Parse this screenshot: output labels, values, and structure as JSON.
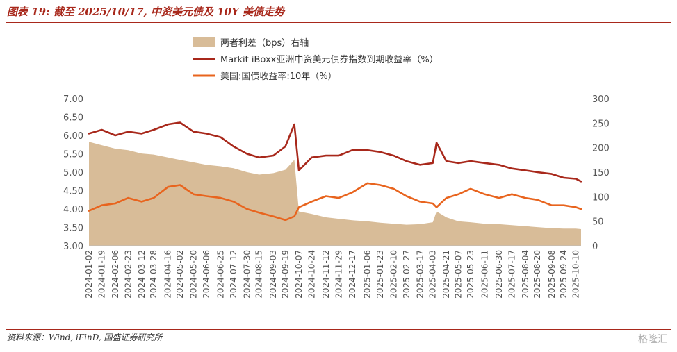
{
  "title": "图表 19: 截至 2025/10/17, 中资美元债及 10Y 美债走势",
  "source": "资料来源：Wind, iFinD, 国盛证券研究所",
  "watermark": "格隆汇",
  "colors": {
    "spread": "#d8bc98",
    "markit": "#a8281b",
    "treasury": "#e8641e",
    "accent": "#a8281b"
  },
  "chart_data": {
    "type": "line",
    "legend": [
      "两者利差（bps）右轴",
      "Markit iBoxx亚洲中资美元债券指数到期收益率（%）",
      "美国:国债收益率:10年（%）"
    ],
    "left_axis": {
      "ylim": [
        3.0,
        7.0
      ],
      "ticks": [
        "3.00",
        "3.50",
        "4.00",
        "4.50",
        "5.00",
        "5.50",
        "6.00",
        "6.50",
        "7.00"
      ]
    },
    "right_axis": {
      "ylim": [
        0,
        300
      ],
      "ticks": [
        "0",
        "50",
        "100",
        "150",
        "200",
        "250",
        "300"
      ]
    },
    "x_tick_labels": [
      "2024-01-02",
      "2024-01-19",
      "2024-02-06",
      "2024-02-23",
      "2024-03-12",
      "2024-03-28",
      "2024-04-16",
      "2024-05-02",
      "2024-05-20",
      "2024-06-06",
      "2024-06-25",
      "2024-07-12",
      "2024-07-30",
      "2024-08-15",
      "2024-09-03",
      "2024-09-19",
      "2024-10-07",
      "2024-10-24",
      "2024-11-12",
      "2024-11-29",
      "2024-12-17",
      "2025-01-06",
      "2025-01-23",
      "2025-02-10",
      "2025-02-27",
      "2025-03-17",
      "2025-04-03",
      "2025-04-21",
      "2025-05-07",
      "2025-05-23",
      "2025-06-11",
      "2025-06-30",
      "2025-07-17",
      "2025-08-04",
      "2025-08-20",
      "2025-09-08",
      "2025-09-24",
      "2025-10-10"
    ],
    "x": [
      "2024-01-02",
      "2024-01-19",
      "2024-02-06",
      "2024-02-23",
      "2024-03-12",
      "2024-03-28",
      "2024-04-16",
      "2024-05-02",
      "2024-05-20",
      "2024-06-06",
      "2024-06-25",
      "2024-07-12",
      "2024-07-30",
      "2024-08-15",
      "2024-09-03",
      "2024-09-19",
      "2024-10-01",
      "2024-10-07",
      "2024-10-24",
      "2024-11-12",
      "2024-11-29",
      "2024-12-17",
      "2025-01-06",
      "2025-01-23",
      "2025-02-10",
      "2025-02-27",
      "2025-03-17",
      "2025-04-03",
      "2025-04-08",
      "2025-04-21",
      "2025-05-07",
      "2025-05-23",
      "2025-06-11",
      "2025-06-30",
      "2025-07-17",
      "2025-08-04",
      "2025-08-20",
      "2025-09-08",
      "2025-09-24",
      "2025-10-10",
      "2025-10-17"
    ],
    "series": [
      {
        "name": "两者利差（bps）右轴",
        "axis": "right",
        "type": "area",
        "values": [
          212,
          205,
          198,
          195,
          188,
          186,
          180,
          175,
          170,
          165,
          162,
          158,
          150,
          145,
          148,
          155,
          175,
          70,
          65,
          58,
          55,
          52,
          50,
          47,
          45,
          43,
          44,
          48,
          70,
          58,
          50,
          48,
          45,
          44,
          42,
          40,
          38,
          36,
          35,
          35,
          34
        ]
      },
      {
        "name": "Markit iBoxx亚洲中资美元债券指数到期收益率（%）",
        "axis": "left",
        "type": "line",
        "values": [
          6.05,
          6.15,
          6.0,
          6.1,
          6.05,
          6.15,
          6.3,
          6.35,
          6.1,
          6.05,
          5.95,
          5.7,
          5.5,
          5.4,
          5.45,
          5.7,
          6.3,
          5.05,
          5.4,
          5.45,
          5.45,
          5.6,
          5.6,
          5.55,
          5.45,
          5.3,
          5.2,
          5.25,
          5.8,
          5.3,
          5.25,
          5.3,
          5.25,
          5.2,
          5.1,
          5.05,
          5.0,
          4.95,
          4.85,
          4.82,
          4.75
        ]
      },
      {
        "name": "美国:国债收益率:10年（%）",
        "axis": "left",
        "type": "line",
        "values": [
          3.95,
          4.1,
          4.15,
          4.3,
          4.2,
          4.3,
          4.6,
          4.65,
          4.4,
          4.35,
          4.3,
          4.2,
          4.0,
          3.9,
          3.8,
          3.7,
          3.8,
          4.05,
          4.2,
          4.35,
          4.3,
          4.45,
          4.7,
          4.65,
          4.55,
          4.35,
          4.2,
          4.15,
          4.05,
          4.3,
          4.4,
          4.55,
          4.4,
          4.3,
          4.4,
          4.3,
          4.25,
          4.1,
          4.1,
          4.05,
          4.0
        ]
      }
    ]
  }
}
